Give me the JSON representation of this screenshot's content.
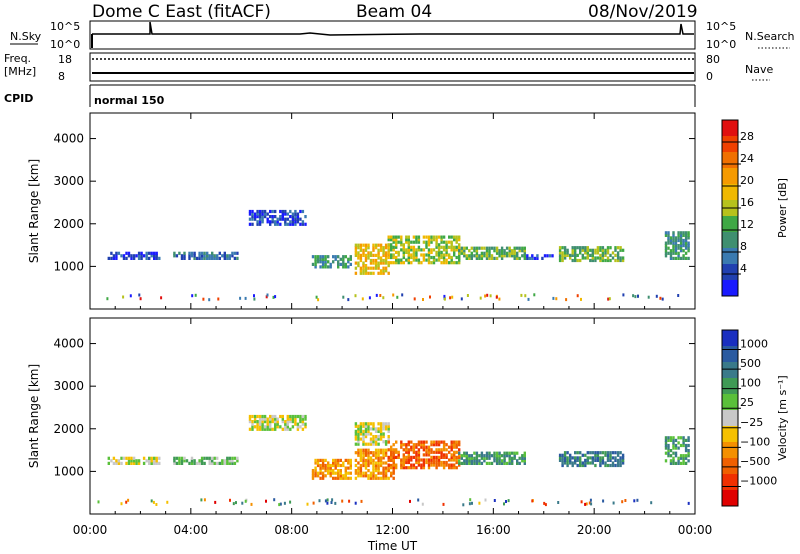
{
  "header": {
    "title": "Dome C East (fitACF)",
    "beam": "Beam 04",
    "date": "08/Nov/2019"
  },
  "strip_labels": {
    "nsky": "N.Sky",
    "nsearch": "N.Search",
    "freq": "Freq.",
    "freq_unit": "[MHz]",
    "nave": "Nave",
    "cpid": "CPID",
    "cpid_value": "normal 150",
    "nsky_ticks": [
      "10^5",
      "10^0"
    ],
    "nsearch_ticks": [
      "10^5",
      "10^0"
    ],
    "freq_ticks": [
      "18",
      "8"
    ],
    "nave_ticks": [
      "80",
      "0"
    ]
  },
  "chart_data": [
    {
      "type": "heatmap",
      "panel": "power",
      "ylabel": "Slant Range [km]",
      "ylim": [
        0,
        4600
      ],
      "xlim_hours": [
        0,
        24
      ],
      "x_ticks": [
        "00:00",
        "04:00",
        "08:00",
        "12:00",
        "16:00",
        "20:00",
        "00:00"
      ],
      "y_ticks": [
        1000,
        2000,
        3000,
        4000
      ],
      "colorbar": {
        "label": "Power [dB]",
        "ticks": [
          "4",
          "8",
          "12",
          "16",
          "20",
          "24",
          "28"
        ],
        "colors": [
          "#1a1aff",
          "#2040b0",
          "#3a7ab0",
          "#3f8f70",
          "#3fa845",
          "#b6c21c",
          "#f0b800",
          "#f59a00",
          "#f07000",
          "#f04000",
          "#e01010"
        ]
      },
      "regions": [
        {
          "t": [
            0.7,
            2.8
          ],
          "r": [
            1150,
            1300
          ],
          "level": 1
        },
        {
          "t": [
            3.3,
            5.8
          ],
          "r": [
            1150,
            1300
          ],
          "level": 2
        },
        {
          "t": [
            6.3,
            8.5
          ],
          "r": [
            1950,
            2300
          ],
          "level": 1
        },
        {
          "t": [
            8.8,
            10.3
          ],
          "r": [
            950,
            1250
          ],
          "level": 3
        },
        {
          "t": [
            10.5,
            11.8
          ],
          "r": [
            800,
            1500
          ],
          "level": 6
        },
        {
          "t": [
            11.8,
            14.6
          ],
          "r": [
            1050,
            1700
          ],
          "level": 5
        },
        {
          "t": [
            14.6,
            17.3
          ],
          "r": [
            1150,
            1450
          ],
          "level": 4
        },
        {
          "t": [
            17.3,
            18.4
          ],
          "r": [
            1150,
            1250
          ],
          "level": 1
        },
        {
          "t": [
            18.6,
            21.2
          ],
          "r": [
            1100,
            1450
          ],
          "level": 4
        },
        {
          "t": [
            22.8,
            23.8
          ],
          "r": [
            1150,
            1800
          ],
          "level": 3
        }
      ]
    },
    {
      "type": "heatmap",
      "panel": "velocity",
      "xlabel": "Time UT",
      "ylabel": "Slant Range [km]",
      "ylim": [
        0,
        4600
      ],
      "xlim_hours": [
        0,
        24
      ],
      "x_ticks": [
        "00:00",
        "04:00",
        "08:00",
        "12:00",
        "16:00",
        "20:00",
        "00:00"
      ],
      "y_ticks": [
        1000,
        2000,
        3000,
        4000
      ],
      "colorbar": {
        "label": "Velocity [m s⁻¹]",
        "ticks": [
          "1000",
          "500",
          "100",
          "25",
          "−25",
          "−100",
          "−500",
          "−1000"
        ],
        "colors": [
          "#1a2fc0",
          "#2a5aa0",
          "#3a7a8a",
          "#3f9a55",
          "#5ac03a",
          "#c8c8c8",
          "#f5c000",
          "#f59000",
          "#f06000",
          "#f03000",
          "#e00000"
        ]
      },
      "regions": [
        {
          "t": [
            0.7,
            2.8
          ],
          "r": [
            1150,
            1300
          ],
          "level": 5
        },
        {
          "t": [
            3.3,
            5.8
          ],
          "r": [
            1150,
            1300
          ],
          "level": 4
        },
        {
          "t": [
            6.3,
            8.5
          ],
          "r": [
            1950,
            2300
          ],
          "level": 5
        },
        {
          "t": [
            8.8,
            10.3
          ],
          "r": [
            800,
            1250
          ],
          "level": 7
        },
        {
          "t": [
            10.5,
            11.8
          ],
          "r": [
            1600,
            2100
          ],
          "level": 5
        },
        {
          "t": [
            10.5,
            12.0
          ],
          "r": [
            800,
            1500
          ],
          "level": 7
        },
        {
          "t": [
            11.8,
            14.6
          ],
          "r": [
            1050,
            1700
          ],
          "level": 8
        },
        {
          "t": [
            14.6,
            17.3
          ],
          "r": [
            1150,
            1450
          ],
          "level": 3
        },
        {
          "t": [
            18.6,
            21.2
          ],
          "r": [
            1100,
            1450
          ],
          "level": 2
        },
        {
          "t": [
            22.8,
            23.8
          ],
          "r": [
            1150,
            1800
          ],
          "level": 3
        }
      ]
    }
  ]
}
